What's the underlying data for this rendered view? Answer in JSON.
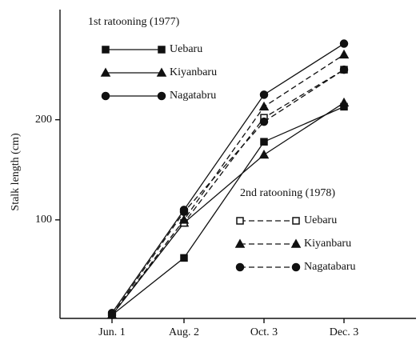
{
  "chart_data": {
    "type": "line",
    "y_label": "Stalk length (cm)",
    "categories": [
      "Jun. 1",
      "Aug. 2",
      "Oct. 3",
      "Dec. 3"
    ],
    "ylim": [
      0,
      310
    ],
    "yticks": [
      100,
      200
    ],
    "legend_titles": [
      "1st ratooning (1977)",
      "2nd ratooning (1978)"
    ],
    "series": [
      {
        "name": "Uebaru",
        "color": "#111111",
        "marker": "square",
        "filled": true,
        "dash": false,
        "values": [
          5,
          62,
          178,
          213
        ]
      },
      {
        "name": "Kiyanbaru",
        "color": "#111111",
        "marker": "triangle",
        "filled": true,
        "dash": false,
        "values": [
          5,
          97,
          165,
          217
        ]
      },
      {
        "name": "Nagatabru",
        "color": "#111111",
        "marker": "circle",
        "filled": true,
        "dash": false,
        "values": [
          7,
          110,
          225,
          276
        ]
      },
      {
        "name": "Uebaru",
        "color": "#111111",
        "marker": "square",
        "filled": false,
        "dash": true,
        "values": [
          5,
          97,
          202,
          250
        ]
      },
      {
        "name": "Kiyanbaru",
        "color": "#111111",
        "marker": "triangle",
        "filled": true,
        "dash": true,
        "values": [
          5,
          100,
          213,
          265
        ]
      },
      {
        "name": "Nagatabaru",
        "color": "#111111",
        "marker": "circle",
        "filled": true,
        "dash": true,
        "values": [
          5,
          108,
          198,
          250
        ]
      }
    ]
  }
}
